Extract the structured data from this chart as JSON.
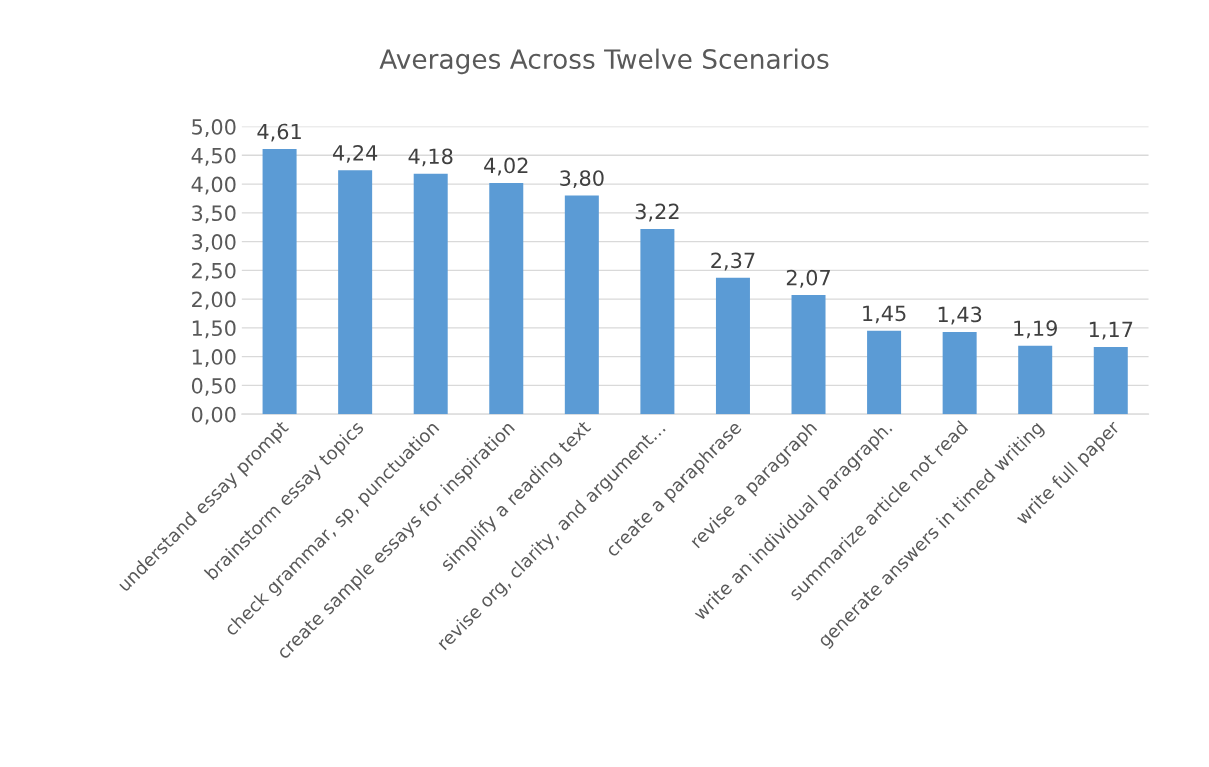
{
  "chart_data": {
    "type": "bar",
    "title": "Averages Across Twelve Scenarios",
    "categories": [
      "understand essay prompt",
      "brainstorm essay topics",
      "check grammar, sp, punctuation",
      "create sample essays for inspiration",
      "simplify a reading text",
      "revise org, clarity, and argument…",
      "create a paraphrase",
      "revise a paragraph",
      "write an individual paragraph.",
      "summarize article not read",
      "generate answers in timed writing",
      "write full paper"
    ],
    "values": [
      4.61,
      4.24,
      4.18,
      4.02,
      3.8,
      3.22,
      2.37,
      2.07,
      1.45,
      1.43,
      1.19,
      1.17
    ],
    "value_labels": [
      "4,61",
      "4,24",
      "4,18",
      "4,02",
      "3,80",
      "3,22",
      "2,37",
      "2,07",
      "1,45",
      "1,43",
      "1,19",
      "1,17"
    ],
    "color": "#5b9bd5",
    "ylim": [
      0,
      5
    ],
    "yticks": [
      {
        "value": 0,
        "label": "0,00"
      },
      {
        "value": 0.5,
        "label": "0,50"
      },
      {
        "value": 1,
        "label": "1,00"
      },
      {
        "value": 1.5,
        "label": "1,50"
      },
      {
        "value": 2,
        "label": "2,00"
      },
      {
        "value": 2.5,
        "label": "2,50"
      },
      {
        "value": 3,
        "label": "3,00"
      },
      {
        "value": 3.5,
        "label": "3,50"
      },
      {
        "value": 4,
        "label": "4,00"
      },
      {
        "value": 4.5,
        "label": "4,50"
      },
      {
        "value": 5,
        "label": "5,00"
      }
    ],
    "grid": "y"
  }
}
